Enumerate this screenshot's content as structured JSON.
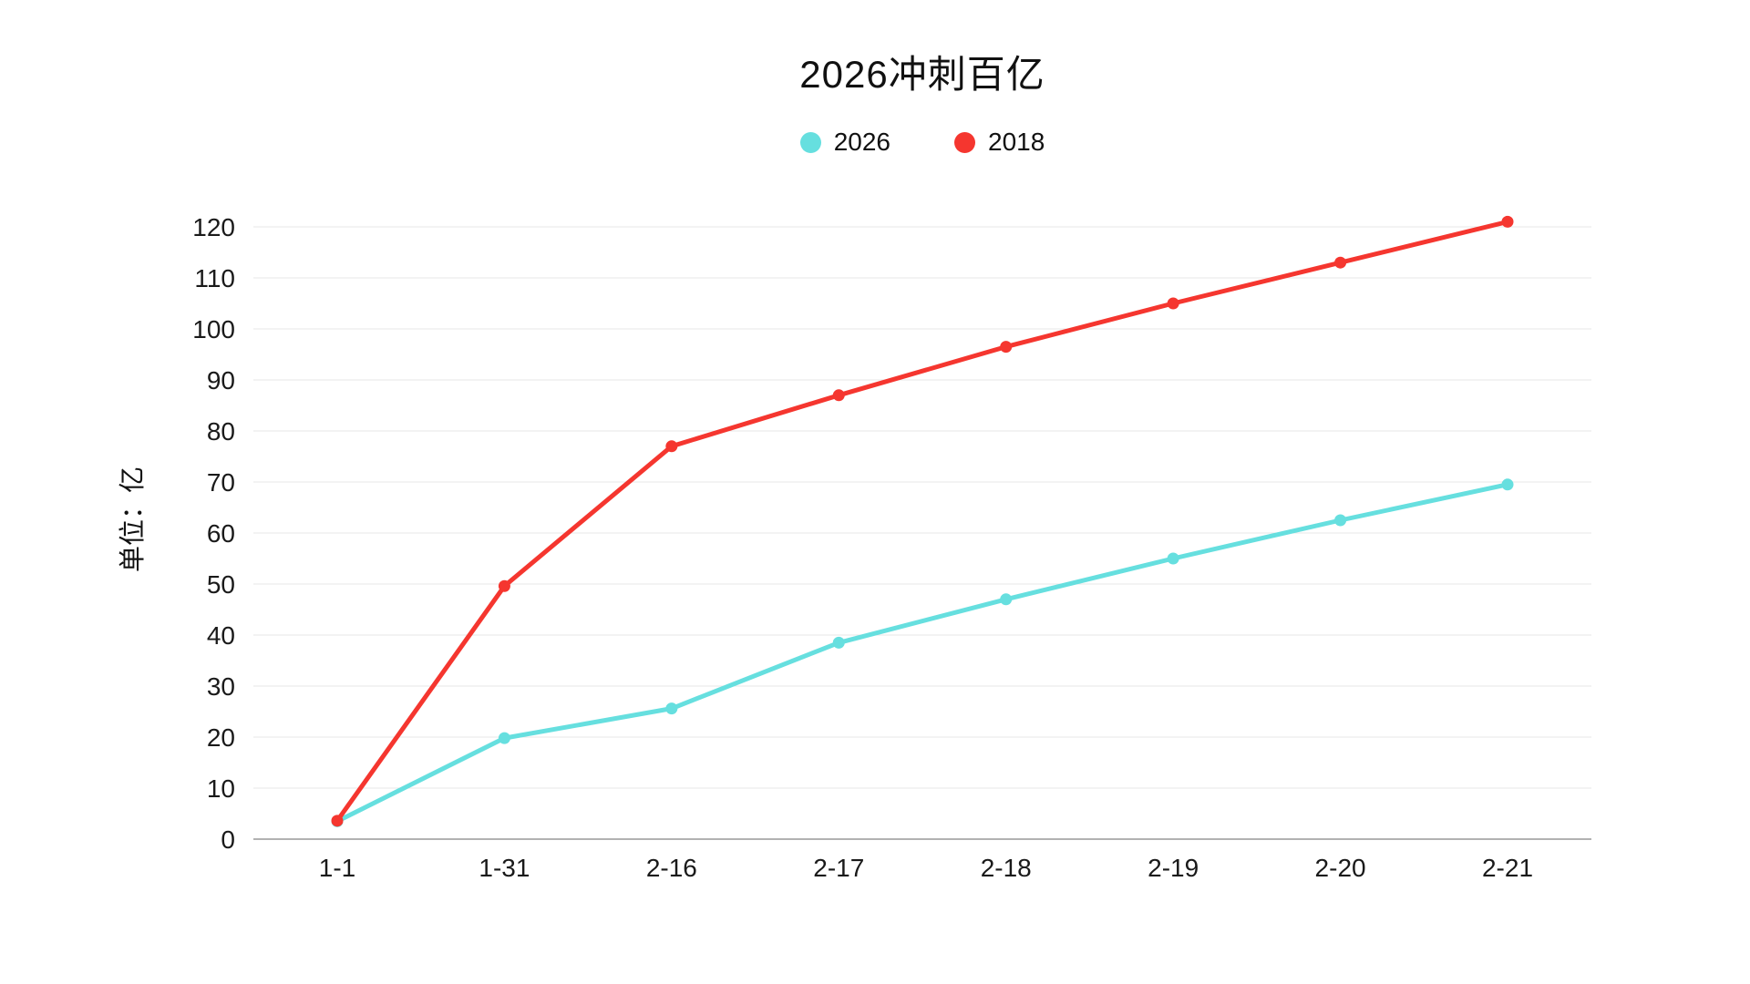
{
  "chart": {
    "title": "2026冲刺百亿",
    "y_axis_title": "单位：亿"
  },
  "chart_data": {
    "type": "line",
    "title": "2026冲刺百亿",
    "xlabel": "",
    "ylabel": "单位：亿",
    "categories": [
      "1-1",
      "1-31",
      "2-16",
      "2-17",
      "2-18",
      "2-19",
      "2-20",
      "2-21"
    ],
    "series": [
      {
        "name": "2026",
        "color": "#66dfdf",
        "values": [
          3.5,
          19.8,
          25.6,
          38.5,
          47,
          55,
          62.5,
          69.5
        ]
      },
      {
        "name": "2018",
        "color": "#f5362f",
        "values": [
          3.6,
          49.6,
          77,
          87,
          96.5,
          105,
          113,
          121
        ]
      }
    ],
    "ylim": [
      0,
      120
    ],
    "yticks": [
      0,
      10,
      20,
      30,
      40,
      50,
      60,
      70,
      80,
      90,
      100,
      110,
      120
    ],
    "grid": "horizontal",
    "legend_position": "top",
    "colors": {
      "grid_line": "#e7e7e7",
      "axis_line": "#999999",
      "text": "#1a1a1a",
      "background": "#ffffff"
    }
  }
}
